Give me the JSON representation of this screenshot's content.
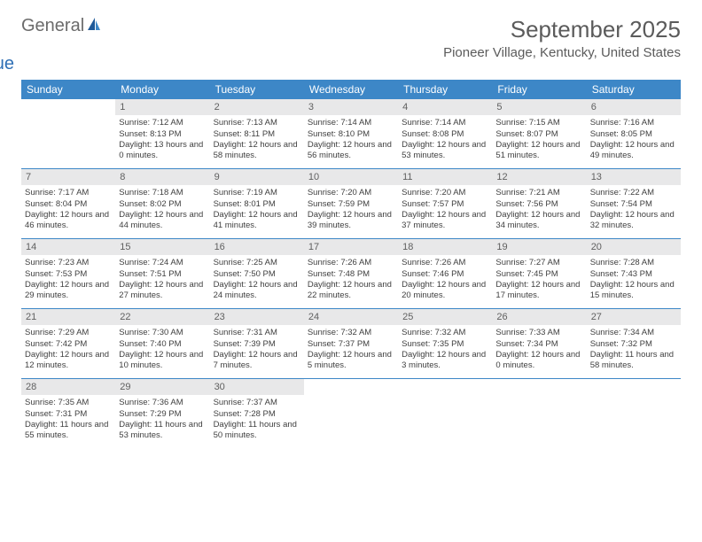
{
  "logo": {
    "part1": "General",
    "part2": "Blue"
  },
  "header": {
    "month_title": "September 2025",
    "location": "Pioneer Village, Kentucky, United States"
  },
  "colors": {
    "header_bg": "#3d87c7",
    "header_text": "#ffffff",
    "daynum_bg": "#e8e8e9",
    "daynum_text": "#606060",
    "body_text": "#404040",
    "title_text": "#5b5b5b",
    "logo_gray": "#6b6b6b",
    "logo_blue": "#2e6fb5"
  },
  "day_names": [
    "Sunday",
    "Monday",
    "Tuesday",
    "Wednesday",
    "Thursday",
    "Friday",
    "Saturday"
  ],
  "weeks": [
    [
      null,
      {
        "n": "1",
        "sr": "Sunrise: 7:12 AM",
        "ss": "Sunset: 8:13 PM",
        "dl": "Daylight: 13 hours and 0 minutes."
      },
      {
        "n": "2",
        "sr": "Sunrise: 7:13 AM",
        "ss": "Sunset: 8:11 PM",
        "dl": "Daylight: 12 hours and 58 minutes."
      },
      {
        "n": "3",
        "sr": "Sunrise: 7:14 AM",
        "ss": "Sunset: 8:10 PM",
        "dl": "Daylight: 12 hours and 56 minutes."
      },
      {
        "n": "4",
        "sr": "Sunrise: 7:14 AM",
        "ss": "Sunset: 8:08 PM",
        "dl": "Daylight: 12 hours and 53 minutes."
      },
      {
        "n": "5",
        "sr": "Sunrise: 7:15 AM",
        "ss": "Sunset: 8:07 PM",
        "dl": "Daylight: 12 hours and 51 minutes."
      },
      {
        "n": "6",
        "sr": "Sunrise: 7:16 AM",
        "ss": "Sunset: 8:05 PM",
        "dl": "Daylight: 12 hours and 49 minutes."
      }
    ],
    [
      {
        "n": "7",
        "sr": "Sunrise: 7:17 AM",
        "ss": "Sunset: 8:04 PM",
        "dl": "Daylight: 12 hours and 46 minutes."
      },
      {
        "n": "8",
        "sr": "Sunrise: 7:18 AM",
        "ss": "Sunset: 8:02 PM",
        "dl": "Daylight: 12 hours and 44 minutes."
      },
      {
        "n": "9",
        "sr": "Sunrise: 7:19 AM",
        "ss": "Sunset: 8:01 PM",
        "dl": "Daylight: 12 hours and 41 minutes."
      },
      {
        "n": "10",
        "sr": "Sunrise: 7:20 AM",
        "ss": "Sunset: 7:59 PM",
        "dl": "Daylight: 12 hours and 39 minutes."
      },
      {
        "n": "11",
        "sr": "Sunrise: 7:20 AM",
        "ss": "Sunset: 7:57 PM",
        "dl": "Daylight: 12 hours and 37 minutes."
      },
      {
        "n": "12",
        "sr": "Sunrise: 7:21 AM",
        "ss": "Sunset: 7:56 PM",
        "dl": "Daylight: 12 hours and 34 minutes."
      },
      {
        "n": "13",
        "sr": "Sunrise: 7:22 AM",
        "ss": "Sunset: 7:54 PM",
        "dl": "Daylight: 12 hours and 32 minutes."
      }
    ],
    [
      {
        "n": "14",
        "sr": "Sunrise: 7:23 AM",
        "ss": "Sunset: 7:53 PM",
        "dl": "Daylight: 12 hours and 29 minutes."
      },
      {
        "n": "15",
        "sr": "Sunrise: 7:24 AM",
        "ss": "Sunset: 7:51 PM",
        "dl": "Daylight: 12 hours and 27 minutes."
      },
      {
        "n": "16",
        "sr": "Sunrise: 7:25 AM",
        "ss": "Sunset: 7:50 PM",
        "dl": "Daylight: 12 hours and 24 minutes."
      },
      {
        "n": "17",
        "sr": "Sunrise: 7:26 AM",
        "ss": "Sunset: 7:48 PM",
        "dl": "Daylight: 12 hours and 22 minutes."
      },
      {
        "n": "18",
        "sr": "Sunrise: 7:26 AM",
        "ss": "Sunset: 7:46 PM",
        "dl": "Daylight: 12 hours and 20 minutes."
      },
      {
        "n": "19",
        "sr": "Sunrise: 7:27 AM",
        "ss": "Sunset: 7:45 PM",
        "dl": "Daylight: 12 hours and 17 minutes."
      },
      {
        "n": "20",
        "sr": "Sunrise: 7:28 AM",
        "ss": "Sunset: 7:43 PM",
        "dl": "Daylight: 12 hours and 15 minutes."
      }
    ],
    [
      {
        "n": "21",
        "sr": "Sunrise: 7:29 AM",
        "ss": "Sunset: 7:42 PM",
        "dl": "Daylight: 12 hours and 12 minutes."
      },
      {
        "n": "22",
        "sr": "Sunrise: 7:30 AM",
        "ss": "Sunset: 7:40 PM",
        "dl": "Daylight: 12 hours and 10 minutes."
      },
      {
        "n": "23",
        "sr": "Sunrise: 7:31 AM",
        "ss": "Sunset: 7:39 PM",
        "dl": "Daylight: 12 hours and 7 minutes."
      },
      {
        "n": "24",
        "sr": "Sunrise: 7:32 AM",
        "ss": "Sunset: 7:37 PM",
        "dl": "Daylight: 12 hours and 5 minutes."
      },
      {
        "n": "25",
        "sr": "Sunrise: 7:32 AM",
        "ss": "Sunset: 7:35 PM",
        "dl": "Daylight: 12 hours and 3 minutes."
      },
      {
        "n": "26",
        "sr": "Sunrise: 7:33 AM",
        "ss": "Sunset: 7:34 PM",
        "dl": "Daylight: 12 hours and 0 minutes."
      },
      {
        "n": "27",
        "sr": "Sunrise: 7:34 AM",
        "ss": "Sunset: 7:32 PM",
        "dl": "Daylight: 11 hours and 58 minutes."
      }
    ],
    [
      {
        "n": "28",
        "sr": "Sunrise: 7:35 AM",
        "ss": "Sunset: 7:31 PM",
        "dl": "Daylight: 11 hours and 55 minutes."
      },
      {
        "n": "29",
        "sr": "Sunrise: 7:36 AM",
        "ss": "Sunset: 7:29 PM",
        "dl": "Daylight: 11 hours and 53 minutes."
      },
      {
        "n": "30",
        "sr": "Sunrise: 7:37 AM",
        "ss": "Sunset: 7:28 PM",
        "dl": "Daylight: 11 hours and 50 minutes."
      },
      null,
      null,
      null,
      null
    ]
  ]
}
